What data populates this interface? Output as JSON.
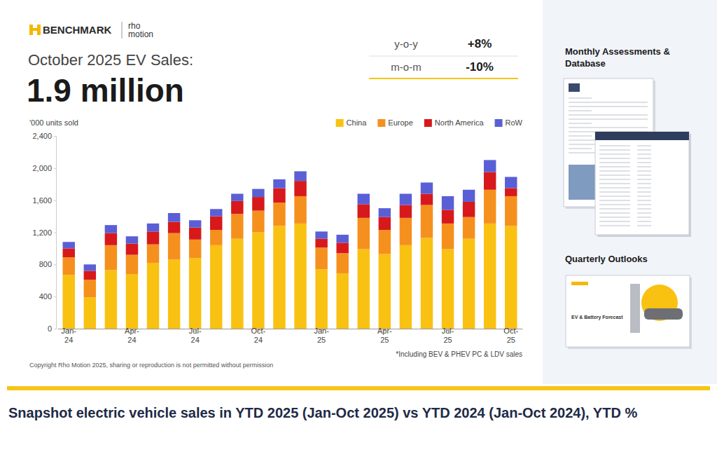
{
  "header": {
    "brand": "BENCHMARK",
    "partner": "rho motion",
    "stats": [
      {
        "label": "y-o-y",
        "value": "+8%"
      },
      {
        "label": "m-o-m",
        "value": "-10%"
      }
    ]
  },
  "chart_data": {
    "type": "bar",
    "stacked": true,
    "title": "October 2025 EV Sales:",
    "subtitle": "1.9 million",
    "y_label": "'000 units sold",
    "categories": [
      "Jan-24",
      null,
      null,
      "Apr-24",
      null,
      null,
      "Jul-24",
      null,
      null,
      "Oct-24",
      null,
      null,
      "Jan-25",
      null,
      null,
      "Apr-25",
      null,
      null,
      "Jul-25",
      null,
      null,
      "Oct-25"
    ],
    "series": [
      {
        "name": "China",
        "color": "#f9c112",
        "values": [
          670,
          390,
          730,
          680,
          820,
          860,
          880,
          1040,
          1120,
          1200,
          1280,
          1310,
          740,
          690,
          990,
          930,
          1040,
          1130,
          990,
          1120,
          1310,
          1280
        ]
      },
      {
        "name": "Europe",
        "color": "#f5901e",
        "values": [
          220,
          220,
          310,
          240,
          230,
          330,
          230,
          190,
          310,
          270,
          290,
          340,
          270,
          250,
          390,
          300,
          340,
          410,
          320,
          270,
          420,
          370
        ]
      },
      {
        "name": "North America",
        "color": "#d7191c",
        "values": [
          110,
          110,
          150,
          140,
          160,
          140,
          150,
          170,
          160,
          170,
          180,
          190,
          110,
          130,
          170,
          160,
          160,
          140,
          170,
          190,
          220,
          100
        ]
      },
      {
        "name": "RoW",
        "color": "#5a5fd6",
        "values": [
          80,
          80,
          100,
          90,
          100,
          110,
          90,
          90,
          90,
          100,
          110,
          120,
          90,
          100,
          130,
          110,
          140,
          140,
          170,
          150,
          150,
          140
        ]
      }
    ],
    "ylim": [
      0,
      2400
    ],
    "yticks": [
      0,
      400,
      800,
      {
        "value": 1200,
        "label": "1,200"
      },
      {
        "value": 1600,
        "label": "1,600"
      },
      {
        "value": 2000,
        "label": "2,000"
      },
      {
        "value": 2400,
        "label": "2,400"
      }
    ],
    "grid": false,
    "legend": "top-right",
    "annotations": [
      "*Including BEV & PHEV PC & LDV sales",
      "Copyright Rho Motion 2025, sharing or reproduction is not permitted without permission"
    ]
  },
  "side": {
    "sections": [
      {
        "title": "Monthly Assessments & Database"
      },
      {
        "title": "Quarterly Outlooks",
        "thumbnail_text": "EV & Battery Forecast"
      }
    ]
  },
  "caption": "Snapshot electric vehicle sales in YTD 2025 (Jan-Oct 2025) vs YTD 2024 (Jan-Oct 2024), YTD %"
}
